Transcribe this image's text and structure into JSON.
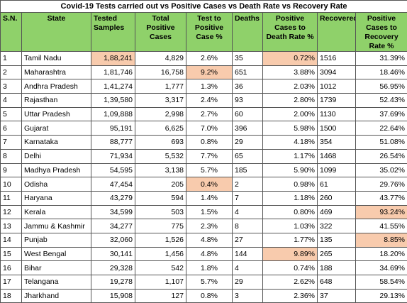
{
  "table": {
    "title": "Covid-19  Tests carried out vs Positive Cases vs Death Rate vs Recovery Rate",
    "headers": [
      "S.N.",
      "State",
      "Tested Samples",
      "Total Positive Cases",
      "Test to Positive Case %",
      "Deaths",
      "Positive Cases to Death Rate %",
      "Recovered",
      "Positive Cases to Recovery Rate %"
    ],
    "rows": [
      [
        "1",
        "Tamil Nadu",
        "1,88,241",
        "4,829",
        "2.6%",
        "35",
        "0.72%",
        "1516",
        "31.39%"
      ],
      [
        "2",
        "Maharashtra",
        "1,81,746",
        "16,758",
        "9.2%",
        "651",
        "3.88%",
        "3094",
        "18.46%"
      ],
      [
        "3",
        "Andhra Pradesh",
        "1,41,274",
        "1,777",
        "1.3%",
        "36",
        "2.03%",
        "1012",
        "56.95%"
      ],
      [
        "4",
        "Rajasthan",
        "1,39,580",
        "3,317",
        "2.4%",
        "93",
        "2.80%",
        "1739",
        "52.43%"
      ],
      [
        "5",
        "Uttar Pradesh",
        "1,09,888",
        "2,998",
        "2.7%",
        "60",
        "2.00%",
        "1130",
        "37.69%"
      ],
      [
        "6",
        "Gujarat",
        "95,191",
        "6,625",
        "7.0%",
        "396",
        "5.98%",
        "1500",
        "22.64%"
      ],
      [
        "7",
        "Karnataka",
        "88,777",
        "693",
        "0.8%",
        "29",
        "4.18%",
        "354",
        "51.08%"
      ],
      [
        "8",
        "Delhi",
        "71,934",
        "5,532",
        "7.7%",
        "65",
        "1.17%",
        "1468",
        "26.54%"
      ],
      [
        "9",
        "Madhya Pradesh",
        "54,595",
        "3,138",
        "5.7%",
        "185",
        "5.90%",
        "1099",
        "35.02%"
      ],
      [
        "10",
        "Odisha",
        "47,454",
        "205",
        "0.4%",
        "2",
        "0.98%",
        "61",
        "29.76%"
      ],
      [
        "11",
        "Haryana",
        "43,279",
        "594",
        "1.4%",
        "7",
        "1.18%",
        "260",
        "43.77%"
      ],
      [
        "12",
        "Kerala",
        "34,599",
        "503",
        "1.5%",
        "4",
        "0.80%",
        "469",
        "93.24%"
      ],
      [
        "13",
        "Jammu & Kashmir",
        "34,277",
        "775",
        "2.3%",
        "8",
        "1.03%",
        "322",
        "41.55%"
      ],
      [
        "14",
        "Punjab",
        "32,060",
        "1,526",
        "4.8%",
        "27",
        "1.77%",
        "135",
        "8.85%"
      ],
      [
        "15",
        "West Bengal",
        "30,141",
        "1,456",
        "4.8%",
        "144",
        "9.89%",
        "265",
        "18.20%"
      ],
      [
        "16",
        "Bihar",
        "29,328",
        "542",
        "1.8%",
        "4",
        "0.74%",
        "188",
        "34.69%"
      ],
      [
        "17",
        "Telangana",
        "19,278",
        "1,107",
        "5.7%",
        "29",
        "2.62%",
        "648",
        "58.54%"
      ],
      [
        "18",
        "Jharkhand",
        "15,908",
        "127",
        "0.8%",
        "3",
        "2.36%",
        "37",
        "29.13%"
      ]
    ]
  }
}
